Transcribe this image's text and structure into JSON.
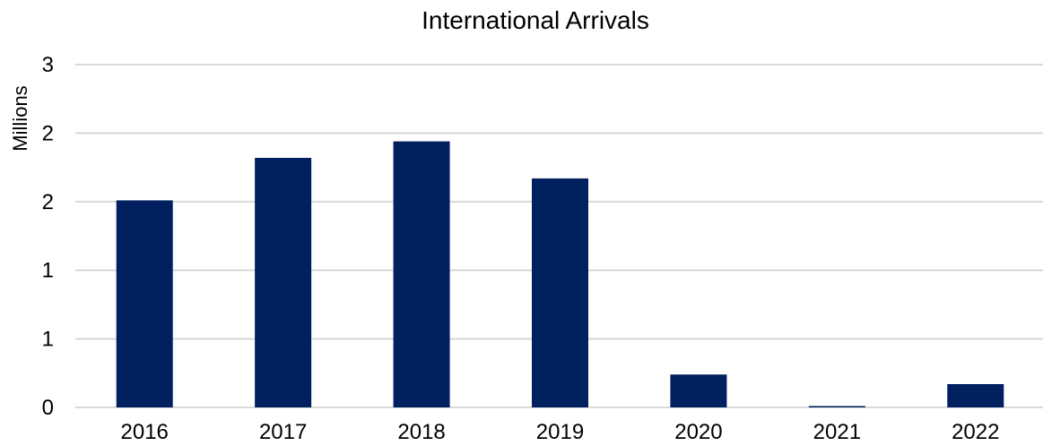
{
  "chart_data": {
    "type": "bar",
    "title": "International Arrivals",
    "ylabel": "Millions",
    "xlabel": "",
    "categories": [
      "2016",
      "2017",
      "2018",
      "2019",
      "2020",
      "2021",
      "2022"
    ],
    "values": [
      1.51,
      1.82,
      1.94,
      1.67,
      0.24,
      0.01,
      0.17
    ],
    "ylim": [
      0,
      2.5
    ],
    "y_ticks": [
      0,
      0.5,
      1,
      1.5,
      2,
      2.5
    ],
    "y_tick_labels": [
      "0",
      "1",
      "1",
      "2",
      "2",
      "3"
    ],
    "grid": true,
    "legend": "none",
    "bar_color": "#002060",
    "grid_color": "#d9d9d9"
  }
}
